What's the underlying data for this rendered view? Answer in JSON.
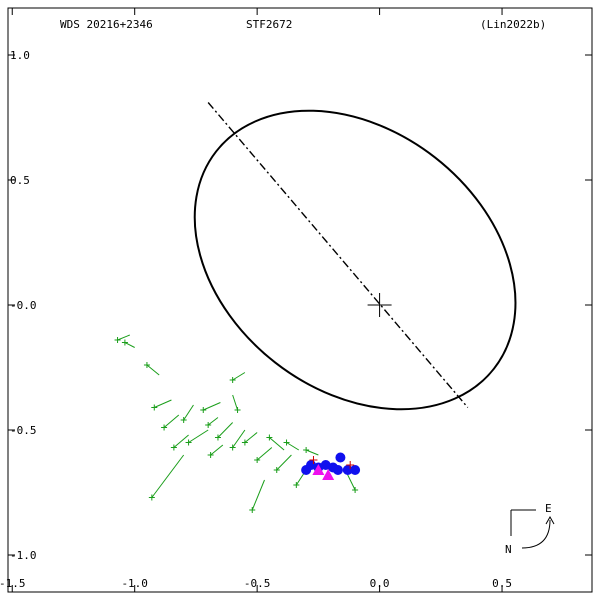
{
  "chart_data": {
    "type": "scatter",
    "header": {
      "left": "WDS 20216+2346",
      "center": "STF2672",
      "right": "(Lin2022b)"
    },
    "xlim": [
      -1.55,
      0.9
    ],
    "ylim": [
      -1.18,
      1.22
    ],
    "x_ticks": [
      -1.5,
      -1.0,
      -0.5,
      0.0,
      0.5
    ],
    "x_tick_labels": [
      "-1.5",
      "-1.0",
      "-0.5",
      "0.0",
      "0.5"
    ],
    "y_ticks": [
      1.0,
      0.5,
      0.0,
      -0.5,
      -1.0
    ],
    "y_tick_labels": [
      "1.0",
      "0.5",
      "-0.0",
      "-0.5",
      "-1.0"
    ],
    "orbit": {
      "center": [
        0.0,
        0.0
      ],
      "a": 0.72,
      "b": 0.52,
      "angle_deg": 38,
      "offset": [
        -0.1,
        0.18
      ]
    },
    "line_of_nodes": [
      [
        -0.7,
        0.81
      ],
      [
        0.36,
        -0.41
      ]
    ],
    "primary": [
      0.0,
      0.0
    ],
    "colors": {
      "orbit": "#000000",
      "micrometric": "#1a9e1a",
      "speckle": "#1010ee",
      "interferometric": "#ee10ee",
      "recent": "#cc0000"
    },
    "micrometric_pairs": [
      [
        [
          -1.04,
          -0.15
        ],
        [
          -1.0,
          -0.17
        ]
      ],
      [
        [
          -0.95,
          -0.24
        ],
        [
          -0.9,
          -0.28
        ]
      ],
      [
        [
          -0.92,
          -0.41
        ],
        [
          -0.85,
          -0.38
        ]
      ],
      [
        [
          -0.8,
          -0.46
        ],
        [
          -0.76,
          -0.4
        ]
      ],
      [
        [
          -0.88,
          -0.49
        ],
        [
          -0.82,
          -0.44
        ]
      ],
      [
        [
          -0.78,
          -0.55
        ],
        [
          -0.7,
          -0.5
        ]
      ],
      [
        [
          -0.72,
          -0.42
        ],
        [
          -0.65,
          -0.39
        ]
      ],
      [
        [
          -0.66,
          -0.53
        ],
        [
          -0.6,
          -0.47
        ]
      ],
      [
        [
          -0.6,
          -0.57
        ],
        [
          -0.55,
          -0.5
        ]
      ],
      [
        [
          -0.93,
          -0.77
        ],
        [
          -0.8,
          -0.6
        ]
      ],
      [
        [
          -0.69,
          -0.6
        ],
        [
          -0.64,
          -0.56
        ]
      ],
      [
        [
          -0.55,
          -0.55
        ],
        [
          -0.5,
          -0.51
        ]
      ],
      [
        [
          -0.5,
          -0.62
        ],
        [
          -0.44,
          -0.57
        ]
      ],
      [
        [
          -0.45,
          -0.53
        ],
        [
          -0.39,
          -0.58
        ]
      ],
      [
        [
          -0.52,
          -0.82
        ],
        [
          -0.47,
          -0.7
        ]
      ],
      [
        [
          -0.42,
          -0.66
        ],
        [
          -0.36,
          -0.6
        ]
      ],
      [
        [
          -0.38,
          -0.55
        ],
        [
          -0.33,
          -0.58
        ]
      ],
      [
        [
          -0.34,
          -0.72
        ],
        [
          -0.3,
          -0.66
        ]
      ],
      [
        [
          -0.3,
          -0.58
        ],
        [
          -0.25,
          -0.6
        ]
      ],
      [
        [
          -0.1,
          -0.74
        ],
        [
          -0.14,
          -0.66
        ]
      ],
      [
        [
          -0.6,
          -0.3
        ],
        [
          -0.55,
          -0.27
        ]
      ],
      [
        [
          -0.84,
          -0.57
        ],
        [
          -0.78,
          -0.52
        ]
      ],
      [
        [
          -0.7,
          -0.48
        ],
        [
          -0.66,
          -0.45
        ]
      ],
      [
        [
          -0.58,
          -0.42
        ],
        [
          -0.6,
          -0.36
        ]
      ],
      [
        [
          -1.07,
          -0.14
        ],
        [
          -1.02,
          -0.12
        ]
      ]
    ],
    "speckle": [
      [
        -0.3,
        -0.66
      ],
      [
        -0.25,
        -0.65
      ],
      [
        -0.22,
        -0.64
      ],
      [
        -0.19,
        -0.65
      ],
      [
        -0.17,
        -0.66
      ],
      [
        -0.13,
        -0.66
      ],
      [
        -0.1,
        -0.66
      ],
      [
        -0.16,
        -0.61
      ],
      [
        -0.28,
        -0.64
      ]
    ],
    "interferometric": [
      [
        -0.21,
        -0.68
      ],
      [
        -0.25,
        -0.66
      ]
    ],
    "recent": [
      [
        -0.27,
        -0.62
      ],
      [
        -0.12,
        -0.64
      ]
    ],
    "compass": {
      "east": "E",
      "north": "N"
    }
  }
}
